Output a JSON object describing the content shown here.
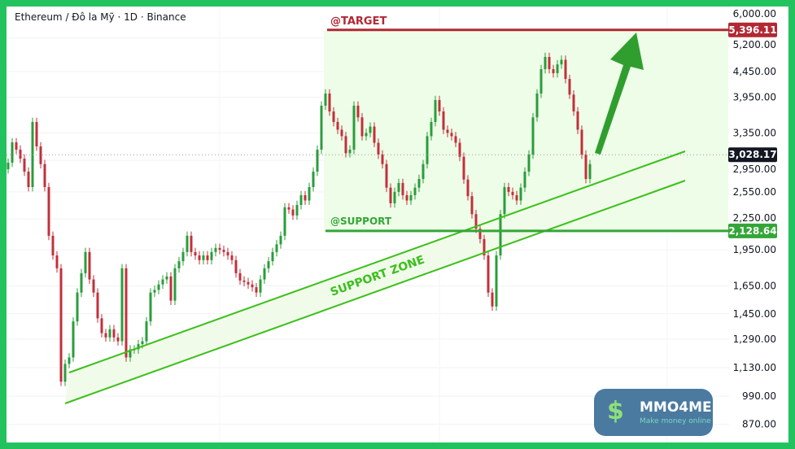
{
  "header": {
    "title": "Ethereum / Đô la Mỹ · 1D · Binance"
  },
  "colors": {
    "frame": "#22c35e",
    "up": "#2a9d3a",
    "down": "#c2303b",
    "target": "#b22833",
    "support": "#33a637",
    "current": "#131722",
    "zone": "#3cbf1c"
  },
  "annotations": {
    "target_label": "@TARGET",
    "support_label": "@SUPPORT",
    "zone_label": "SUPPORT ZONE"
  },
  "logo": {
    "name": "MMO4ME",
    "tagline": "Make money online",
    "icon": "dollar-icon"
  },
  "chart_data": {
    "type": "candlestick",
    "symbol": "Ethereum / Đô la Mỹ",
    "interval": "1D",
    "exchange": "Binance",
    "y_scale": "log",
    "ylim": [
      840,
      6100
    ],
    "y_ticks": [
      "6,000.00",
      "5,200.00",
      "4,450.00",
      "3,950.00",
      "3,350.00",
      "2,950.00",
      "2,550.00",
      "2,250.00",
      "1,950.00",
      "1,650.00",
      "1,450.00",
      "1,290.00",
      "1,130.00",
      "990.00",
      "870.00"
    ],
    "price_levels": {
      "target": {
        "value": 5396.11,
        "label": "5,396.11"
      },
      "current": {
        "value": 3028.17,
        "label": "3,028.17"
      },
      "support": {
        "value": 2128.64,
        "label": "2,128.64"
      }
    },
    "closes": [
      2919,
      3207,
      3100,
      2974,
      2800,
      2607,
      3524,
      3147,
      2900,
      2607,
      2081,
      1900,
      1790,
      1059,
      1150,
      1185,
      1400,
      1600,
      1750,
      1930,
      1700,
      1600,
      1420,
      1326,
      1300,
      1350,
      1300,
      1277,
      1790,
      1185,
      1230,
      1230,
      1260,
      1277,
      1400,
      1600,
      1620,
      1661,
      1700,
      1724,
      1541,
      1790,
      1850,
      1930,
      2081,
      1930,
      1900,
      1859,
      1900,
      1859,
      1930,
      1967,
      1950,
      1930,
      1900,
      1859,
      1750,
      1692,
      1680,
      1661,
      1640,
      1600,
      1700,
      1790,
      1850,
      1930,
      2000,
      2081,
      2374,
      2350,
      2286,
      2400,
      2511,
      2450,
      2607,
      2800,
      3100,
      3800,
      4020,
      3700,
      3524,
      3400,
      3300,
      3050,
      3100,
      3800,
      3600,
      3300,
      3350,
      3450,
      3200,
      3031,
      2900,
      2600,
      2419,
      2550,
      2657,
      2511,
      2450,
      2511,
      2600,
      2707,
      2900,
      3300,
      3524,
      3900,
      3700,
      3400,
      3350,
      3300,
      3200,
      3000,
      2700,
      2500,
      2300,
      2150,
      2050,
      1900,
      1600,
      1500,
      1900,
      2300,
      2607,
      2550,
      2511,
      2450,
      2600,
      2800,
      3031,
      3600,
      4020,
      4500,
      4762,
      4500,
      4417,
      4600,
      4700,
      4300,
      4000,
      3700,
      3400,
      3031,
      2707,
      2900
    ]
  }
}
